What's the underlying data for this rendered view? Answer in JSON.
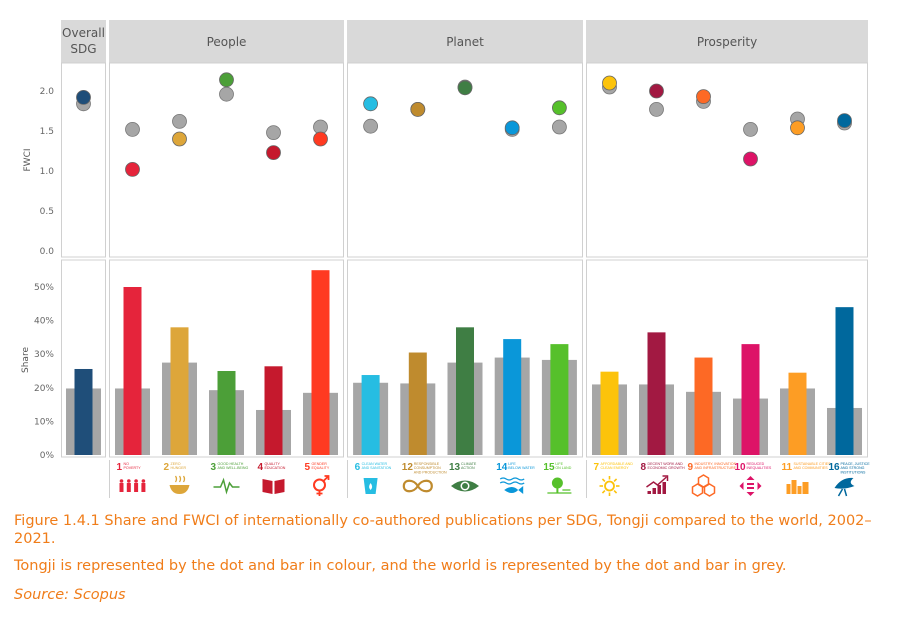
{
  "caption": {
    "title": "Figure 1.4.1 Share and FWCI of internationally co-authored publications per SDG, Tongji compared to the world, 2002–2021.",
    "note": "Tongji is represented by the dot and bar in colour, and the world is represented by the dot and bar in grey.",
    "source": "Source: Scopus"
  },
  "colors": {
    "world": "#a6a6a6",
    "header_bg": "#d9d9d9",
    "caption": "#f07d1a"
  },
  "chart_data": {
    "type": "dot+bar",
    "groups": [
      {
        "id": "overall",
        "label_lines": [
          "Overall",
          "SDG"
        ]
      },
      {
        "id": "people",
        "label_lines": [
          "People"
        ]
      },
      {
        "id": "planet",
        "label_lines": [
          "Planet"
        ]
      },
      {
        "id": "prosperity",
        "label_lines": [
          "Prosperity"
        ]
      }
    ],
    "fwci_axis": {
      "title": "FWCI",
      "ylim": [
        0,
        2.2
      ],
      "ticks": [
        "0.0",
        "0.5",
        "1.0",
        "1.5",
        "2.0"
      ],
      "tick_values": [
        0,
        0.5,
        1.0,
        1.5,
        2.0
      ]
    },
    "share_axis": {
      "title": "Share",
      "ylim": [
        0,
        0.57
      ],
      "ticks": [
        "0%",
        "10%",
        "20%",
        "30%",
        "40%",
        "50%"
      ],
      "tick_values": [
        0,
        0.1,
        0.2,
        0.3,
        0.4,
        0.5
      ]
    },
    "categories": [
      {
        "group": "overall",
        "num": "",
        "name": "Overall SDG",
        "label_lines": [],
        "color": "#1f4e79",
        "fwci_tongji": 1.92,
        "fwci_world": 1.84,
        "share_tongji": 0.256,
        "share_world": 0.198
      },
      {
        "group": "people",
        "num": "1",
        "name": "No Poverty",
        "label_lines": [
          "NO",
          "POVERTY"
        ],
        "icon": "family-icon",
        "color": "#e5243b",
        "fwci_tongji": 1.02,
        "fwci_world": 1.52,
        "share_tongji": 0.5,
        "share_world": 0.198
      },
      {
        "group": "people",
        "num": "2",
        "name": "Zero Hunger",
        "label_lines": [
          "ZERO",
          "HUNGER"
        ],
        "icon": "bowl-icon",
        "color": "#dda63a",
        "fwci_tongji": 1.4,
        "fwci_world": 1.62,
        "share_tongji": 0.38,
        "share_world": 0.275
      },
      {
        "group": "people",
        "num": "3",
        "name": "Good Health and Well-Being",
        "label_lines": [
          "GOOD HEALTH",
          "AND WELL-BEING"
        ],
        "icon": "heartbeat-icon",
        "color": "#4c9f38",
        "fwci_tongji": 2.14,
        "fwci_world": 1.96,
        "share_tongji": 0.25,
        "share_world": 0.193
      },
      {
        "group": "people",
        "num": "4",
        "name": "Quality Education",
        "label_lines": [
          "QUALITY",
          "EDUCATION"
        ],
        "icon": "book-icon",
        "color": "#c5192d",
        "fwci_tongji": 1.23,
        "fwci_world": 1.48,
        "share_tongji": 0.264,
        "share_world": 0.134
      },
      {
        "group": "people",
        "num": "5",
        "name": "Gender Equality",
        "label_lines": [
          "GENDER",
          "EQUALITY"
        ],
        "icon": "gender-icon",
        "color": "#ff3a21",
        "fwci_tongji": 1.4,
        "fwci_world": 1.55,
        "share_tongji": 0.55,
        "share_world": 0.185
      },
      {
        "group": "planet",
        "num": "6",
        "name": "Clean Water and Sanitation",
        "label_lines": [
          "CLEAN WATER",
          "AND SANITATION"
        ],
        "icon": "water-icon",
        "color": "#26bde2",
        "fwci_tongji": 1.84,
        "fwci_world": 1.56,
        "share_tongji": 0.238,
        "share_world": 0.215
      },
      {
        "group": "planet",
        "num": "12",
        "name": "Responsible Consumption and Production",
        "label_lines": [
          "RESPONSIBLE",
          "CONSUMPTION",
          "AND PRODUCTION"
        ],
        "icon": "infinity-icon",
        "color": "#bf8b2e",
        "fwci_tongji": 1.77,
        "fwci_world": 1.77,
        "share_tongji": 0.305,
        "share_world": 0.213
      },
      {
        "group": "planet",
        "num": "13",
        "name": "Climate Action",
        "label_lines": [
          "CLIMATE",
          "ACTION"
        ],
        "icon": "eye-globe-icon",
        "color": "#3f7e44",
        "fwci_tongji": 2.04,
        "fwci_world": 2.05,
        "share_tongji": 0.38,
        "share_world": 0.275
      },
      {
        "group": "planet",
        "num": "14",
        "name": "Life Below Water",
        "label_lines": [
          "LIFE",
          "BELOW WATER"
        ],
        "icon": "fish-icon",
        "color": "#0a97d9",
        "fwci_tongji": 1.54,
        "fwci_world": 1.52,
        "share_tongji": 0.345,
        "share_world": 0.29
      },
      {
        "group": "planet",
        "num": "15",
        "name": "Life on Land",
        "label_lines": [
          "LIFE",
          "ON LAND"
        ],
        "icon": "tree-icon",
        "color": "#56c02b",
        "fwci_tongji": 1.79,
        "fwci_world": 1.55,
        "share_tongji": 0.33,
        "share_world": 0.283
      },
      {
        "group": "prosperity",
        "num": "7",
        "name": "Affordable and Clean Energy",
        "label_lines": [
          "AFFORDABLE AND",
          "CLEAN ENERGY"
        ],
        "icon": "sun-icon",
        "color": "#fcc30b",
        "fwci_tongji": 2.1,
        "fwci_world": 2.05,
        "share_tongji": 0.248,
        "share_world": 0.21
      },
      {
        "group": "prosperity",
        "num": "8",
        "name": "Decent Work and Economic Growth",
        "label_lines": [
          "DECENT WORK AND",
          "ECONOMIC GROWTH"
        ],
        "icon": "growth-chart-icon",
        "color": "#a21942",
        "fwci_tongji": 2.0,
        "fwci_world": 1.77,
        "share_tongji": 0.365,
        "share_world": 0.21
      },
      {
        "group": "prosperity",
        "num": "9",
        "name": "Industry, Innovation and Infrastructure",
        "label_lines": [
          "INDUSTRY, INNOVATION",
          "AND INFRASTRUCTURE"
        ],
        "icon": "cubes-icon",
        "color": "#fd6925",
        "fwci_tongji": 1.93,
        "fwci_world": 1.87,
        "share_tongji": 0.29,
        "share_world": 0.188
      },
      {
        "group": "prosperity",
        "num": "10",
        "name": "Reduced Inequalities",
        "label_lines": [
          "REDUCED",
          "INEQUALITIES"
        ],
        "icon": "equality-arrows-icon",
        "color": "#dd1367",
        "fwci_tongji": 1.15,
        "fwci_world": 1.52,
        "share_tongji": 0.33,
        "share_world": 0.168
      },
      {
        "group": "prosperity",
        "num": "11",
        "name": "Sustainable Cities and Communities",
        "label_lines": [
          "SUSTAINABLE CITIES",
          "AND COMMUNITIES"
        ],
        "icon": "city-icon",
        "color": "#fd9d24",
        "fwci_tongji": 1.54,
        "fwci_world": 1.65,
        "share_tongji": 0.245,
        "share_world": 0.198
      },
      {
        "group": "prosperity",
        "num": "16",
        "name": "Peace, Justice and Strong Institutions",
        "label_lines": [
          "PEACE, JUSTICE",
          "AND STRONG",
          "INSTITUTIONS"
        ],
        "icon": "dove-icon",
        "color": "#00689d",
        "fwci_tongji": 1.63,
        "fwci_world": 1.6,
        "share_tongji": 0.44,
        "share_world": 0.14
      }
    ]
  }
}
